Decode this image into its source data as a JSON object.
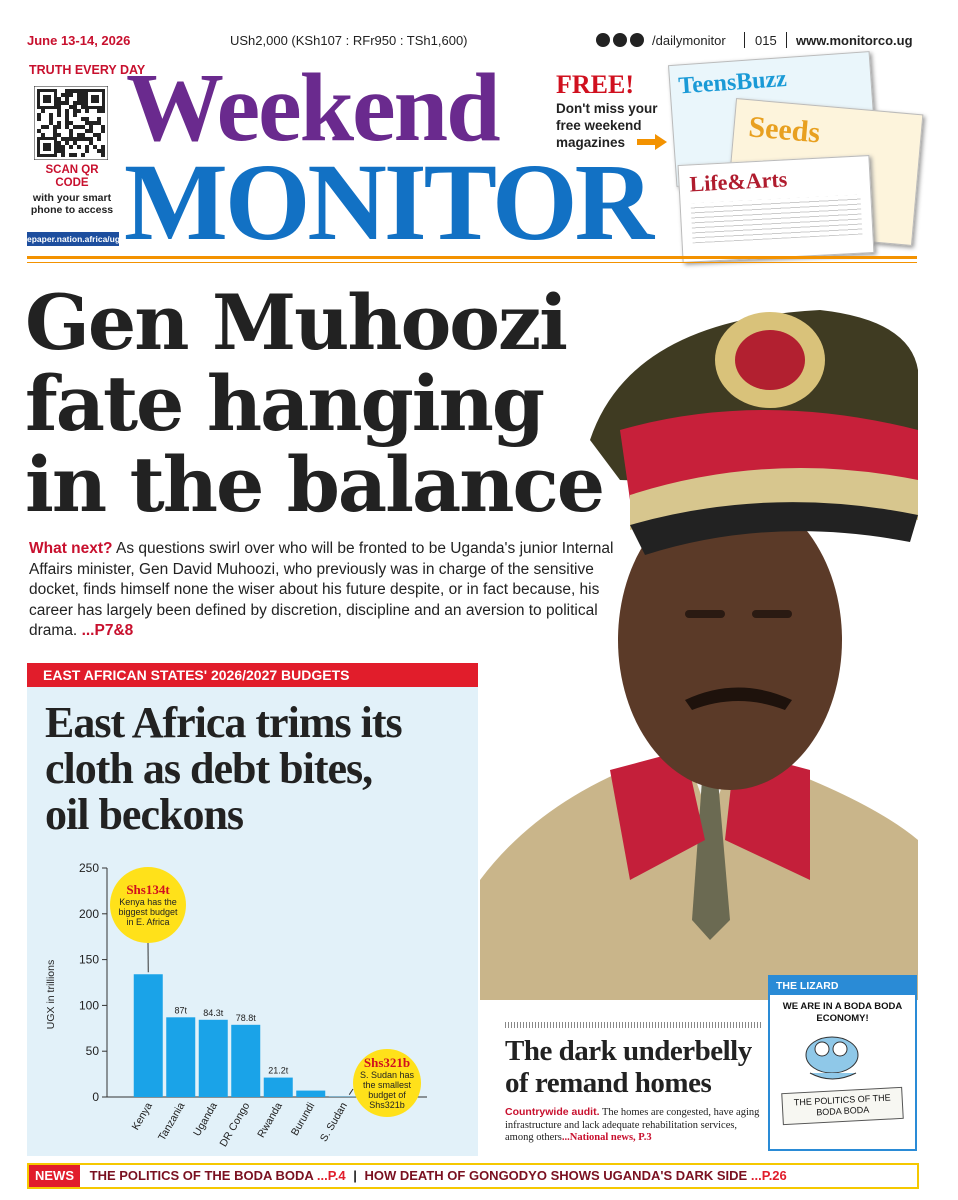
{
  "header": {
    "date": "June 13-14, 2026",
    "price": "USh2,000 (KSh107 : RFr950 : TSh1,600)",
    "social": "/dailymonitor",
    "page": "015",
    "website": "www.monitorco.ug"
  },
  "masthead": {
    "tagline": "TRUTH EVERY DAY",
    "qr_title": "SCAN QR CODE",
    "qr_text": "with your smart phone to access",
    "epaper": "epaper.nation.africa/ug",
    "title_top": "Weekend",
    "title_main": "MONITOR",
    "promo_title": "FREE!",
    "promo_text": "Don't miss your free weekend magazines",
    "magazines": [
      "TeensBuzz",
      "Seeds",
      "Life&Arts"
    ]
  },
  "lead": {
    "headline": [
      "Gen Muhoozi",
      "fate hanging",
      "in the balance"
    ],
    "kicker": "What next?",
    "body": "As questions swirl over who will be fronted to be Uganda's junior Internal Affairs minister, Gen David Muhoozi, who previously was in charge of the sensitive docket, finds himself none the wiser about his future despite, or in fact because, his career has largely been defined by discretion, discipline and an aversion to political drama.",
    "ref": "...P7&8"
  },
  "budget": {
    "label": "EAST AFRICAN STATES' 2026/2027 BUDGETS"
  },
  "chart_data": {
    "type": "bar",
    "title": [
      "East Africa trims its",
      "cloth as debt bites,",
      "oil beckons"
    ],
    "ylabel": "UGX in trillions",
    "categories": [
      "Kenya",
      "Tanzania",
      "Uganda",
      "DR Congo",
      "Rwanda",
      "Burundi",
      "S. Sudan"
    ],
    "values": [
      134,
      87,
      84.3,
      78.8,
      21.2,
      7,
      0.321
    ],
    "value_labels": [
      "Shs134t",
      "87t",
      "84.3t",
      "78.8t",
      "21.2t",
      null,
      "Shs321b"
    ],
    "annotations": [
      "Kenya has the biggest budget in E. Africa",
      "S. Sudan has the smallest budget of Shs321b"
    ],
    "color": "#1aa3e8",
    "ylim": [
      0,
      250
    ],
    "yticks": [
      0,
      50,
      100,
      150,
      200,
      250
    ],
    "grid": false
  },
  "story2": {
    "headline": [
      "The dark underbelly",
      "of remand homes"
    ],
    "kicker": "Countrywide audit.",
    "body": "The homes are congested, have aging infrastructure and lack adequate rehabilitation services, among others",
    "ref": "...National news, P.3"
  },
  "cartoon": {
    "label": "THE LIZARD",
    "caption": "WE ARE IN A BODA BODA ECONOMY!",
    "sign": "THE POLITICS OF THE BODA BODA"
  },
  "footer": {
    "label": "NEWS",
    "items": [
      {
        "text": "THE POLITICS OF THE BODA BODA",
        "ref": "...P.4"
      },
      {
        "text": "HOW DEATH OF GONGODYO SHOWS UGANDA'S DARK SIDE",
        "ref": "...P.26"
      }
    ]
  }
}
